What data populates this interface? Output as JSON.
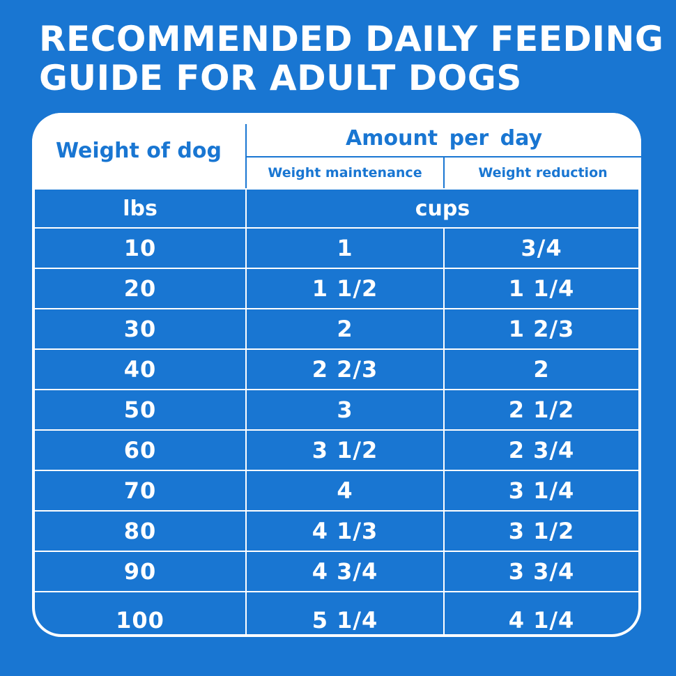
{
  "title": {
    "line1": "RECOMMENDED DAILY FEEDING",
    "line2": "GUIDE FOR ADULT DOGS"
  },
  "header": {
    "weight_label": "Weight of dog",
    "amount_label": "Amount  per day",
    "maintenance_label": "Weight maintenance",
    "reduction_label": "Weight reduction"
  },
  "units": {
    "weight_unit": "lbs",
    "amount_unit": "cups"
  },
  "rows": [
    {
      "weight": "10",
      "maintenance": "1",
      "reduction": "3/4"
    },
    {
      "weight": "20",
      "maintenance": "1 1/2",
      "reduction": "1 1/4"
    },
    {
      "weight": "30",
      "maintenance": "2",
      "reduction": "1 2/3"
    },
    {
      "weight": "40",
      "maintenance": "2 2/3",
      "reduction": "2"
    },
    {
      "weight": "50",
      "maintenance": "3",
      "reduction": "2 1/2"
    },
    {
      "weight": "60",
      "maintenance": "3 1/2",
      "reduction": "2 3/4"
    },
    {
      "weight": "70",
      "maintenance": "4",
      "reduction": "3 1/4"
    },
    {
      "weight": "80",
      "maintenance": "4 1/3",
      "reduction": "3 1/2"
    },
    {
      "weight": "90",
      "maintenance": "4 3/4",
      "reduction": "3 3/4"
    },
    {
      "weight": "100",
      "maintenance": "5 1/4",
      "reduction": "4 1/4"
    }
  ],
  "colors": {
    "background": "#1976d2",
    "card": "#ffffff",
    "text_on_blue": "#ffffff"
  }
}
